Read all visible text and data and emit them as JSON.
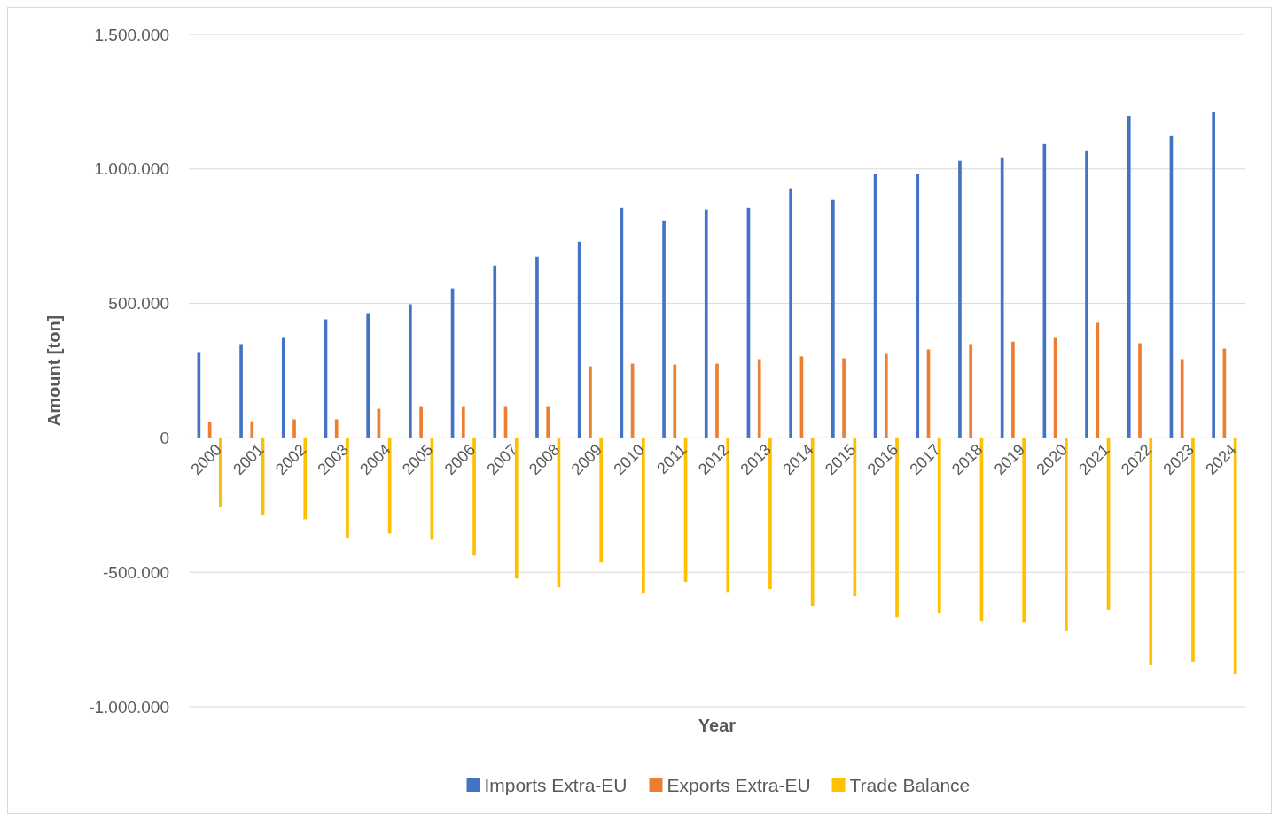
{
  "chart_data": {
    "type": "bar",
    "xlabel": "Year",
    "ylabel": "Amount [ton]",
    "categories": [
      "2000",
      "2001",
      "2002",
      "2003",
      "2004",
      "2005",
      "2006",
      "2007",
      "2008",
      "2009",
      "2010",
      "2011",
      "2012",
      "2013",
      "2014",
      "2015",
      "2016",
      "2017",
      "2018",
      "2019",
      "2020",
      "2021",
      "2022",
      "2023",
      "2024"
    ],
    "series": [
      {
        "name": "Imports Extra-EU",
        "color": "#4472c4",
        "values": [
          316000,
          349000,
          372000,
          441000,
          464000,
          497000,
          556000,
          641000,
          674000,
          730000,
          855000,
          809000,
          849000,
          855000,
          928000,
          885000,
          980000,
          980000,
          1030000,
          1043000,
          1092000,
          1069000,
          1197000,
          1125000,
          1210000
        ]
      },
      {
        "name": "Exports Extra-EU",
        "color": "#ed7d31",
        "values": [
          59000,
          62000,
          69000,
          69000,
          108000,
          118000,
          118000,
          118000,
          118000,
          266000,
          276000,
          273000,
          276000,
          293000,
          303000,
          296000,
          312000,
          329000,
          349000,
          358000,
          372000,
          428000,
          352000,
          293000,
          332000
        ]
      },
      {
        "name": "Trade Balance",
        "color": "#ffc000",
        "values": [
          -257000,
          -287000,
          -303000,
          -372000,
          -356000,
          -379000,
          -438000,
          -523000,
          -556000,
          -464000,
          -579000,
          -536000,
          -573000,
          -562000,
          -625000,
          -589000,
          -668000,
          -651000,
          -681000,
          -685000,
          -720000,
          -641000,
          -845000,
          -832000,
          -878000
        ]
      }
    ],
    "ylim": [
      -1000000,
      1500000
    ],
    "yticks": [
      {
        "value": -1000000,
        "label": "-1.000.000"
      },
      {
        "value": -500000,
        "label": "-500.000"
      },
      {
        "value": 0,
        "label": "0"
      },
      {
        "value": 500000,
        "label": "500.000"
      },
      {
        "value": 1000000,
        "label": "1.000.000"
      },
      {
        "value": 1500000,
        "label": "1.500.000"
      }
    ],
    "grid": "y",
    "legend": "bottom"
  }
}
